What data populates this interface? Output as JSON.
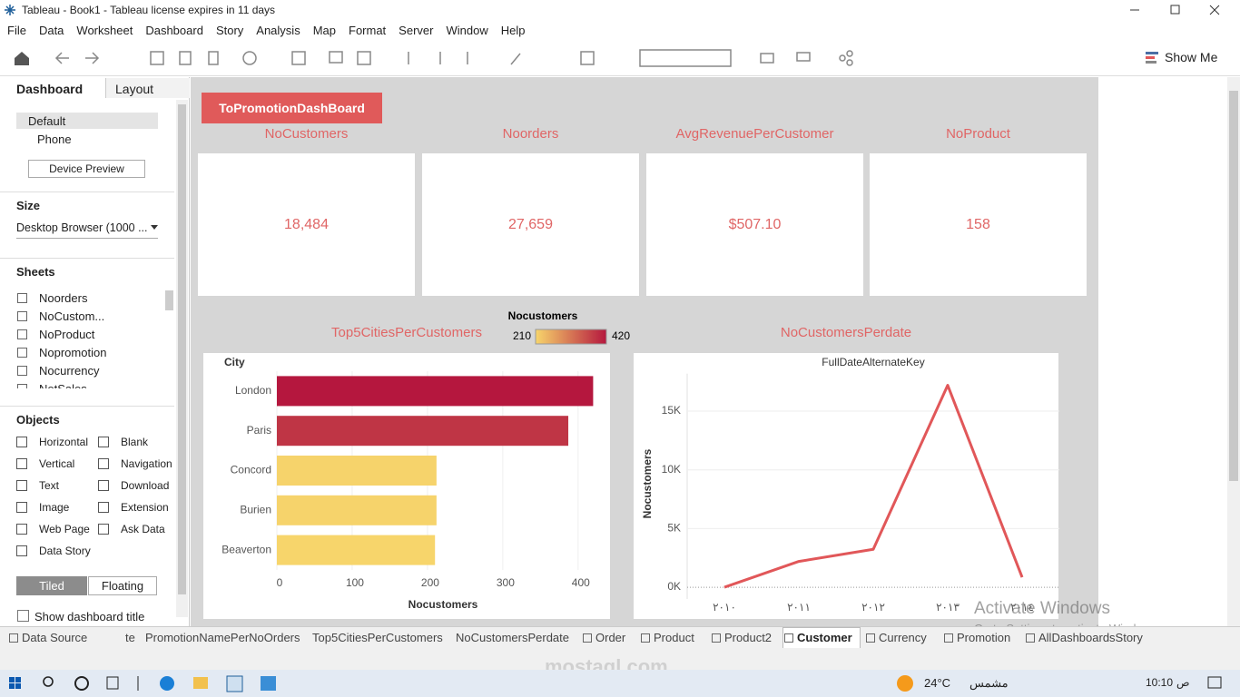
{
  "window": {
    "title": "Tableau - Book1 - Tableau license expires in 11 days"
  },
  "menu": [
    "File",
    "Data",
    "Worksheet",
    "Dashboard",
    "Story",
    "Analysis",
    "Map",
    "Format",
    "Server",
    "Window",
    "Help"
  ],
  "toolbar": {
    "show_me": "Show Me"
  },
  "side_panel": {
    "tabs": [
      "Dashboard",
      "Layout"
    ],
    "devices": [
      "Default",
      "Phone"
    ],
    "device_preview": "Device Preview",
    "size_heading": "Size",
    "size_value": "Desktop Browser (1000 ...",
    "sheets_heading": "Sheets",
    "sheets": [
      "Noorders",
      "NoCustom...",
      "NoProduct",
      "Nopromotion",
      "Nocurrency",
      "NetSales"
    ],
    "objects_heading": "Objects",
    "objects": [
      "Horizontal",
      "Blank",
      "Vertical",
      "Navigation",
      "Text",
      "Download",
      "Image",
      "Extension",
      "Web Page",
      "Ask Data",
      "Data Story"
    ],
    "layout_modes": [
      "Tiled",
      "Floating"
    ],
    "show_title": "Show dashboard title"
  },
  "dashboard": {
    "title": "ToPromotionDashBoard",
    "kpis": [
      {
        "label": "NoCustomers",
        "value": "18,484"
      },
      {
        "label": "Noorders",
        "value": "27,659"
      },
      {
        "label": "AvgRevenuePerCustomer",
        "value": "$507.10"
      },
      {
        "label": "NoProduct",
        "value": "158"
      }
    ]
  },
  "chart_data": [
    {
      "type": "bar",
      "orientation": "horizontal",
      "title": "Top5CitiesPerCustomers",
      "category_label": "City",
      "x_label": "Nocustomers",
      "categories": [
        "London",
        "Paris",
        "Concord",
        "Burien",
        "Beaverton"
      ],
      "values": [
        420,
        387,
        212,
        212,
        210
      ],
      "xlim": [
        0,
        440
      ],
      "xticks": [
        0,
        100,
        200,
        300,
        400
      ],
      "grid": true,
      "color_legend": {
        "title": "Nocustomers",
        "range": [
          210,
          420
        ],
        "colors": [
          "#f7d56b",
          "#b5173e"
        ]
      }
    },
    {
      "type": "line",
      "title": "NoCustomersPerdate",
      "subtitle": "FullDateAlternateKey",
      "y_label": "Nocustomers",
      "categories": [
        "٢٠١٠",
        "٢٠١١",
        "٢٠١٢",
        "٢٠١٣",
        "٢٠١٤"
      ],
      "values": [
        0,
        2200,
        3230,
        17200,
        850
      ],
      "color": "#e15759",
      "ylim": [
        -1000,
        18200
      ],
      "yticks": [
        {
          "value": 0,
          "label": "0K"
        },
        {
          "value": 5000,
          "label": "5K"
        },
        {
          "value": 10000,
          "label": "10K"
        },
        {
          "value": 15000,
          "label": "15K"
        }
      ],
      "grid": true
    }
  ],
  "tabs": [
    "Data Source",
    "te",
    "PromotionNamePerNoOrders",
    "Top5CitiesPerCustomers",
    "NoCustomersPerdate",
    "Order",
    "Product",
    "Product2",
    "Customer",
    "Currency",
    "Promotion",
    "AllDashboardsStory"
  ],
  "active_tab": "Customer",
  "taskbar": {
    "temperature": "24°C",
    "weather": "مشمس",
    "time": "10:10",
    "period": "ص"
  },
  "watermark": {
    "line1": "Activate Windows",
    "line2": "Go to Settings to activate Windows.",
    "site": "mostaql.com"
  }
}
